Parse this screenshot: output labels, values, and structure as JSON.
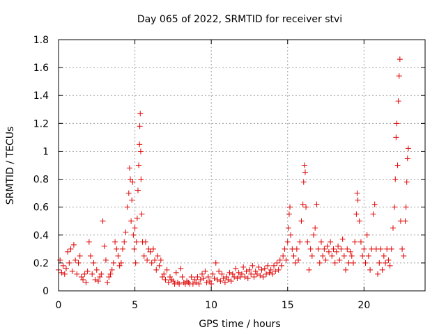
{
  "chart_data": {
    "type": "scatter",
    "title": "Day 065 of 2022, SRMTID for receiver stvi",
    "xlabel": "GPS time / hours",
    "ylabel": "SRMTID / TECUs",
    "xlim": [
      0,
      24
    ],
    "ylim": [
      0,
      1.8
    ],
    "x_ticks": [
      0,
      5,
      10,
      15,
      20
    ],
    "x_tick_labels": [
      "0",
      "5",
      "10",
      "15",
      "20"
    ],
    "y_ticks": [
      0,
      0.2,
      0.4,
      0.6,
      0.8,
      1,
      1.2,
      1.4,
      1.6,
      1.8
    ],
    "y_tick_labels": [
      "0",
      "0.2",
      "0.4",
      "0.6",
      "0.8",
      "1",
      "1.2",
      "1.4",
      "1.6",
      "1.8"
    ],
    "grid": true,
    "marker": "+",
    "color": "#e00000",
    "series": [
      {
        "name": "SRMTID",
        "points": [
          [
            0.0,
            0.15
          ],
          [
            0.1,
            0.22
          ],
          [
            0.2,
            0.13
          ],
          [
            0.3,
            0.18
          ],
          [
            0.4,
            0.12
          ],
          [
            0.5,
            0.16
          ],
          [
            0.6,
            0.28
          ],
          [
            0.7,
            0.2
          ],
          [
            0.8,
            0.3
          ],
          [
            0.9,
            0.14
          ],
          [
            1.0,
            0.33
          ],
          [
            1.1,
            0.22
          ],
          [
            1.2,
            0.12
          ],
          [
            1.3,
            0.2
          ],
          [
            1.4,
            0.25
          ],
          [
            1.5,
            0.1
          ],
          [
            1.6,
            0.08
          ],
          [
            1.7,
            0.12
          ],
          [
            1.8,
            0.06
          ],
          [
            1.9,
            0.14
          ],
          [
            2.0,
            0.35
          ],
          [
            2.1,
            0.25
          ],
          [
            2.2,
            0.12
          ],
          [
            2.3,
            0.2
          ],
          [
            2.4,
            0.08
          ],
          [
            2.5,
            0.15
          ],
          [
            2.6,
            0.07
          ],
          [
            2.7,
            0.1
          ],
          [
            2.8,
            0.12
          ],
          [
            2.9,
            0.5
          ],
          [
            3.0,
            0.32
          ],
          [
            3.1,
            0.22
          ],
          [
            3.2,
            0.06
          ],
          [
            3.3,
            0.1
          ],
          [
            3.4,
            0.12
          ],
          [
            3.5,
            0.15
          ],
          [
            3.6,
            0.2
          ],
          [
            3.7,
            0.35
          ],
          [
            3.8,
            0.3
          ],
          [
            3.9,
            0.25
          ],
          [
            4.0,
            0.18
          ],
          [
            4.1,
            0.2
          ],
          [
            4.2,
            0.3
          ],
          [
            4.3,
            0.35
          ],
          [
            4.4,
            0.42
          ],
          [
            4.5,
            0.6
          ],
          [
            4.6,
            0.7
          ],
          [
            4.65,
            0.88
          ],
          [
            4.7,
            0.8
          ],
          [
            4.75,
            0.5
          ],
          [
            4.8,
            0.65
          ],
          [
            4.85,
            0.78
          ],
          [
            4.9,
            0.4
          ],
          [
            4.95,
            0.3
          ],
          [
            5.0,
            0.45
          ],
          [
            5.05,
            0.2
          ],
          [
            5.1,
            0.35
          ],
          [
            5.15,
            0.52
          ],
          [
            5.2,
            0.72
          ],
          [
            5.25,
            0.9
          ],
          [
            5.3,
            1.05
          ],
          [
            5.32,
            1.18
          ],
          [
            5.35,
            1.27
          ],
          [
            5.38,
            1.0
          ],
          [
            5.4,
            0.8
          ],
          [
            5.45,
            0.55
          ],
          [
            5.5,
            0.35
          ],
          [
            5.6,
            0.25
          ],
          [
            5.7,
            0.35
          ],
          [
            5.8,
            0.22
          ],
          [
            5.9,
            0.3
          ],
          [
            6.0,
            0.28
          ],
          [
            6.1,
            0.2
          ],
          [
            6.2,
            0.3
          ],
          [
            6.3,
            0.22
          ],
          [
            6.4,
            0.15
          ],
          [
            6.5,
            0.25
          ],
          [
            6.6,
            0.18
          ],
          [
            6.7,
            0.22
          ],
          [
            6.8,
            0.1
          ],
          [
            6.9,
            0.12
          ],
          [
            7.0,
            0.08
          ],
          [
            7.1,
            0.15
          ],
          [
            7.2,
            0.06
          ],
          [
            7.3,
            0.1
          ],
          [
            7.4,
            0.08
          ],
          [
            7.5,
            0.07
          ],
          [
            7.6,
            0.05
          ],
          [
            7.7,
            0.13
          ],
          [
            7.8,
            0.06
          ],
          [
            7.9,
            0.05
          ],
          [
            8.0,
            0.16
          ],
          [
            8.1,
            0.1
          ],
          [
            8.2,
            0.06
          ],
          [
            8.3,
            0.05
          ],
          [
            8.4,
            0.07
          ],
          [
            8.5,
            0.06
          ],
          [
            8.6,
            0.05
          ],
          [
            8.7,
            0.1
          ],
          [
            8.8,
            0.05
          ],
          [
            8.9,
            0.08
          ],
          [
            9.0,
            0.06
          ],
          [
            9.1,
            0.1
          ],
          [
            9.2,
            0.05
          ],
          [
            9.3,
            0.08
          ],
          [
            9.4,
            0.12
          ],
          [
            9.5,
            0.09
          ],
          [
            9.6,
            0.14
          ],
          [
            9.7,
            0.06
          ],
          [
            9.8,
            0.1
          ],
          [
            9.9,
            0.07
          ],
          [
            10.0,
            0.05
          ],
          [
            10.1,
            0.12
          ],
          [
            10.2,
            0.09
          ],
          [
            10.3,
            0.2
          ],
          [
            10.4,
            0.08
          ],
          [
            10.5,
            0.14
          ],
          [
            10.6,
            0.07
          ],
          [
            10.7,
            0.12
          ],
          [
            10.8,
            0.09
          ],
          [
            10.9,
            0.06
          ],
          [
            11.0,
            0.1
          ],
          [
            11.1,
            0.08
          ],
          [
            11.2,
            0.13
          ],
          [
            11.3,
            0.07
          ],
          [
            11.4,
            0.12
          ],
          [
            11.5,
            0.1
          ],
          [
            11.6,
            0.16
          ],
          [
            11.7,
            0.09
          ],
          [
            11.8,
            0.13
          ],
          [
            11.9,
            0.1
          ],
          [
            12.0,
            0.12
          ],
          [
            12.1,
            0.17
          ],
          [
            12.2,
            0.1
          ],
          [
            12.3,
            0.14
          ],
          [
            12.4,
            0.09
          ],
          [
            12.5,
            0.15
          ],
          [
            12.6,
            0.12
          ],
          [
            12.7,
            0.18
          ],
          [
            12.8,
            0.1
          ],
          [
            12.9,
            0.14
          ],
          [
            13.0,
            0.12
          ],
          [
            13.1,
            0.17
          ],
          [
            13.2,
            0.11
          ],
          [
            13.3,
            0.15
          ],
          [
            13.4,
            0.1
          ],
          [
            13.5,
            0.16
          ],
          [
            13.6,
            0.12
          ],
          [
            13.7,
            0.18
          ],
          [
            13.8,
            0.13
          ],
          [
            13.9,
            0.15
          ],
          [
            14.0,
            0.12
          ],
          [
            14.1,
            0.18
          ],
          [
            14.2,
            0.14
          ],
          [
            14.3,
            0.2
          ],
          [
            14.4,
            0.15
          ],
          [
            14.5,
            0.22
          ],
          [
            14.6,
            0.18
          ],
          [
            14.7,
            0.25
          ],
          [
            14.8,
            0.3
          ],
          [
            14.9,
            0.22
          ],
          [
            15.0,
            0.35
          ],
          [
            15.05,
            0.45
          ],
          [
            15.1,
            0.55
          ],
          [
            15.15,
            0.6
          ],
          [
            15.2,
            0.4
          ],
          [
            15.3,
            0.3
          ],
          [
            15.4,
            0.25
          ],
          [
            15.5,
            0.2
          ],
          [
            15.6,
            0.3
          ],
          [
            15.7,
            0.22
          ],
          [
            15.8,
            0.35
          ],
          [
            15.9,
            0.5
          ],
          [
            16.0,
            0.62
          ],
          [
            16.05,
            0.78
          ],
          [
            16.1,
            0.9
          ],
          [
            16.15,
            0.85
          ],
          [
            16.2,
            0.6
          ],
          [
            16.3,
            0.35
          ],
          [
            16.4,
            0.15
          ],
          [
            16.5,
            0.3
          ],
          [
            16.6,
            0.25
          ],
          [
            16.7,
            0.4
          ],
          [
            16.8,
            0.45
          ],
          [
            16.9,
            0.62
          ],
          [
            17.0,
            0.3
          ],
          [
            17.1,
            0.2
          ],
          [
            17.2,
            0.35
          ],
          [
            17.3,
            0.25
          ],
          [
            17.4,
            0.3
          ],
          [
            17.5,
            0.22
          ],
          [
            17.6,
            0.32
          ],
          [
            17.7,
            0.28
          ],
          [
            17.8,
            0.35
          ],
          [
            17.9,
            0.25
          ],
          [
            18.0,
            0.3
          ],
          [
            18.1,
            0.2
          ],
          [
            18.2,
            0.28
          ],
          [
            18.3,
            0.32
          ],
          [
            18.4,
            0.22
          ],
          [
            18.5,
            0.3
          ],
          [
            18.6,
            0.37
          ],
          [
            18.7,
            0.25
          ],
          [
            18.8,
            0.15
          ],
          [
            18.9,
            0.3
          ],
          [
            19.0,
            0.2
          ],
          [
            19.1,
            0.28
          ],
          [
            19.2,
            0.25
          ],
          [
            19.3,
            0.2
          ],
          [
            19.4,
            0.35
          ],
          [
            19.5,
            0.55
          ],
          [
            19.55,
            0.7
          ],
          [
            19.6,
            0.65
          ],
          [
            19.7,
            0.5
          ],
          [
            19.8,
            0.35
          ],
          [
            19.9,
            0.25
          ],
          [
            20.0,
            0.3
          ],
          [
            20.1,
            0.2
          ],
          [
            20.2,
            0.4
          ],
          [
            20.3,
            0.25
          ],
          [
            20.4,
            0.15
          ],
          [
            20.5,
            0.3
          ],
          [
            20.6,
            0.55
          ],
          [
            20.7,
            0.62
          ],
          [
            20.8,
            0.3
          ],
          [
            20.9,
            0.12
          ],
          [
            21.0,
            0.2
          ],
          [
            21.1,
            0.3
          ],
          [
            21.2,
            0.15
          ],
          [
            21.3,
            0.25
          ],
          [
            21.4,
            0.2
          ],
          [
            21.5,
            0.3
          ],
          [
            21.6,
            0.22
          ],
          [
            21.7,
            0.18
          ],
          [
            21.8,
            0.3
          ],
          [
            21.9,
            0.45
          ],
          [
            22.0,
            0.6
          ],
          [
            22.05,
            0.8
          ],
          [
            22.1,
            1.1
          ],
          [
            22.15,
            1.2
          ],
          [
            22.2,
            0.9
          ],
          [
            22.25,
            1.36
          ],
          [
            22.3,
            1.54
          ],
          [
            22.35,
            1.66
          ],
          [
            22.4,
            0.5
          ],
          [
            22.5,
            0.3
          ],
          [
            22.6,
            0.25
          ],
          [
            22.7,
            0.5
          ],
          [
            22.75,
            0.6
          ],
          [
            22.8,
            0.78
          ],
          [
            22.85,
            0.95
          ],
          [
            22.9,
            1.02
          ]
        ]
      }
    ]
  }
}
